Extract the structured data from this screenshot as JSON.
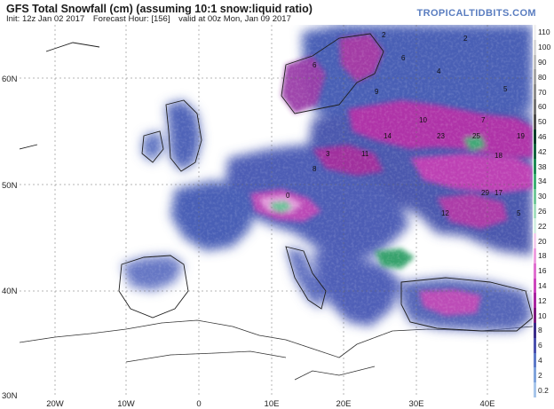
{
  "header": {
    "title": "GFS Total Snowfall (cm) (assuming 10:1 snow:liquid ratio)",
    "init": "Init: 12z Jan 02 2017",
    "forecast_hour": "Forecast Hour: [156]",
    "valid": "valid at 00z Mon, Jan 09 2017",
    "brand": "TROPICALTIDBITS.COM"
  },
  "axes": {
    "lat_labels": [
      "60N",
      "50N",
      "40N",
      "30N"
    ],
    "lon_labels": [
      "20W",
      "10W",
      "0",
      "10E",
      "20E",
      "30E",
      "40E"
    ]
  },
  "colorbar": {
    "units": "cm",
    "levels": [
      "110",
      "100",
      "90",
      "80",
      "70",
      "60",
      "50",
      "46",
      "42",
      "38",
      "34",
      "30",
      "26",
      "22",
      "20",
      "18",
      "16",
      "14",
      "12",
      "10",
      "8",
      "6",
      "4",
      "2",
      "0.2"
    ],
    "colors": [
      "#f2f2f2",
      "#d9d9d9",
      "#bfbfbf",
      "#a6a6a6",
      "#8c8c8c",
      "#737373",
      "#4d4d4d",
      "#0b3d2c",
      "#14603f",
      "#1f8a55",
      "#3fae74",
      "#72c79a",
      "#a6dfc0",
      "#d6f0e4",
      "#f5d0ee",
      "#ee9fe0",
      "#e070d0",
      "#cc45bd",
      "#a826a0",
      "#7c197d",
      "#3b2c8a",
      "#4a50ad",
      "#5e7ac8",
      "#7fa3db",
      "#a8c6ea"
    ]
  },
  "map": {
    "region": "Europe",
    "land_color": "#ffffff",
    "border_color": "#2b2b2b",
    "snow_values_shown": [
      "2",
      "6",
      "4",
      "5",
      "9",
      "7",
      "10",
      "14",
      "23",
      "25",
      "19",
      "18",
      "29",
      "17",
      "12",
      "11",
      "3",
      "8",
      "0"
    ]
  }
}
